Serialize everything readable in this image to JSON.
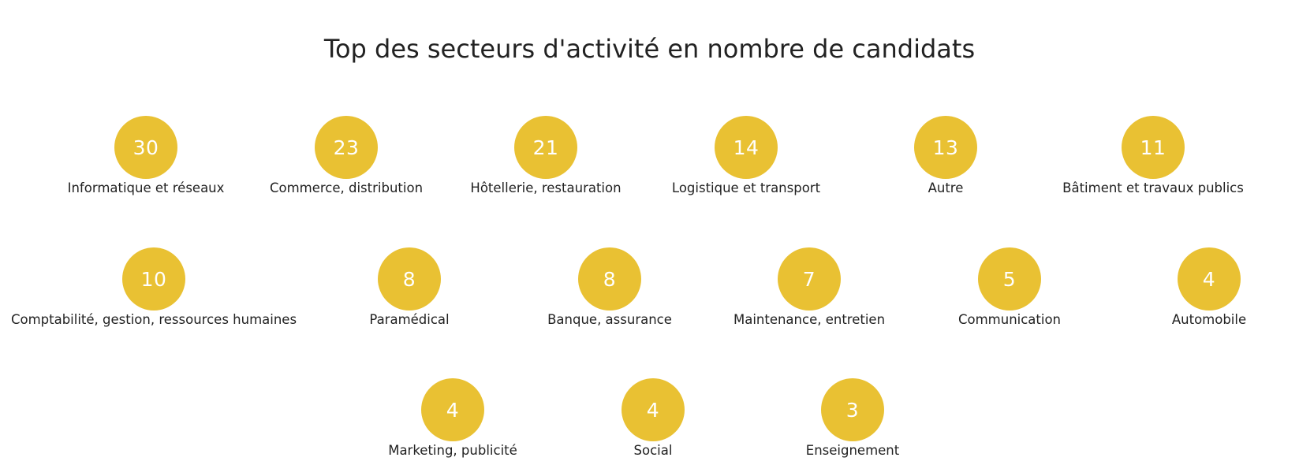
{
  "title": "Top des secteurs d'activité en nombre de candidats",
  "accent_color": "#E9C133",
  "sectors": [
    {
      "count": "30",
      "label": "Informatique et réseaux"
    },
    {
      "count": "23",
      "label": "Commerce, distribution"
    },
    {
      "count": "21",
      "label": "Hôtellerie, restauration"
    },
    {
      "count": "14",
      "label": "Logistique et transport"
    },
    {
      "count": "13",
      "label": "Autre"
    },
    {
      "count": "11",
      "label": "Bâtiment et travaux publics"
    },
    {
      "count": "10",
      "label": "Comptabilité, gestion, ressources humaines"
    },
    {
      "count": "8",
      "label": "Paramédical"
    },
    {
      "count": "8",
      "label": "Banque, assurance"
    },
    {
      "count": "7",
      "label": "Maintenance, entretien"
    },
    {
      "count": "5",
      "label": "Communication"
    },
    {
      "count": "4",
      "label": "Automobile"
    },
    {
      "count": "4",
      "label": "Marketing, publicité"
    },
    {
      "count": "4",
      "label": "Social"
    },
    {
      "count": "3",
      "label": "Enseignement"
    }
  ]
}
